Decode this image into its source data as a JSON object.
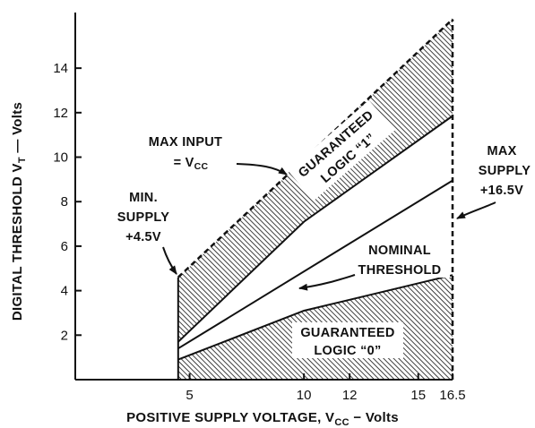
{
  "chart_data": {
    "type": "area",
    "title": "",
    "xlabel": "POSITIVE SUPPLY VOLTAGE, V",
    "xlabel_sub": "CC",
    "xlabel_tail": " − Volts",
    "ylabel": "DIGITAL THRESHOLD V",
    "ylabel_sub": "T",
    "ylabel_tail": " — Volts",
    "xlim": [
      0,
      16.5
    ],
    "ylim": [
      0,
      16.5
    ],
    "xticks": [
      "5",
      "10",
      "12",
      "15",
      "16.5"
    ],
    "yticks": [
      "2",
      "4",
      "6",
      "8",
      "10",
      "12",
      "14"
    ],
    "grid": false,
    "series": [
      {
        "name": "",
        "x": [
          0,
          4.5
        ],
        "y": [
          0,
          0
        ]
      },
      {
        "x": [
          4.5,
          10,
          16.5
        ],
        "y": [
          0.9,
          3.1,
          4.7
        ]
      },
      {
        "x": [
          4.5,
          16.5
        ],
        "y": [
          1.4,
          8.95
        ]
      },
      {
        "x": [
          4.5,
          10,
          16.5
        ],
        "y": [
          1.7,
          7.1,
          11.85
        ]
      },
      {
        "x": [
          4.5,
          10,
          16.5
        ],
        "y": [
          4.6,
          9.9,
          16.2
        ]
      }
    ],
    "annotations": [
      {
        "lines": [
          "MAX INPUT",
          "= V"
        ],
        "sub": "CC"
      },
      {
        "lines": [
          "GUARANTEED",
          "LOGIC “1”"
        ]
      },
      {
        "lines": [
          "MIN.",
          "SUPPLY",
          "+4.5V"
        ]
      },
      {
        "lines": [
          "MAX",
          "SUPPLY",
          "+16.5V"
        ]
      },
      {
        "lines": [
          "NOMINAL",
          "THRESHOLD"
        ]
      },
      {
        "lines": [
          "GUARANTEED",
          "LOGIC “0”"
        ]
      }
    ]
  }
}
